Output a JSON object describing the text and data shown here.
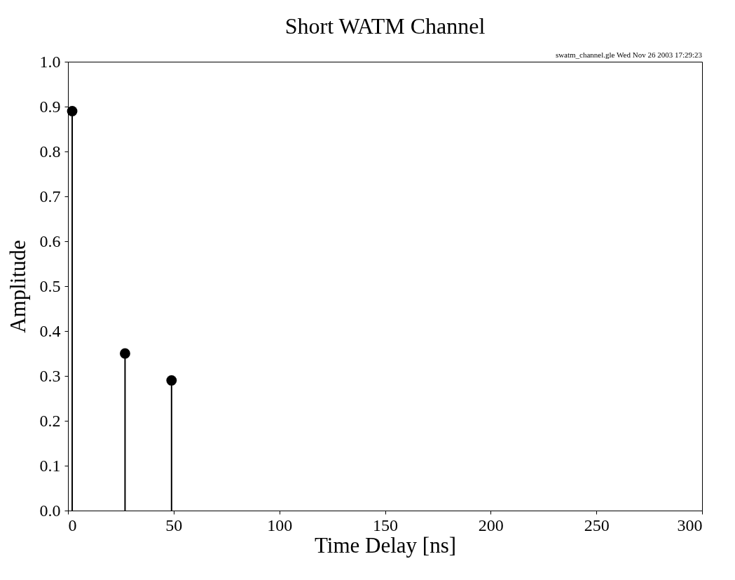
{
  "chart_data": {
    "type": "lollipop",
    "title": "Short WATM Channel",
    "xlabel": "Time Delay [ns]",
    "ylabel": "Amplitude",
    "annotations": [
      "swatm_channel.gle  Wed Nov 26 2003 17:29:23"
    ],
    "x": [
      2,
      27,
      49
    ],
    "values": [
      0.89,
      0.35,
      0.29
    ],
    "color": "#000000",
    "marker": "circle",
    "xlim": [
      0,
      300
    ],
    "xticks": [
      0,
      50,
      100,
      150,
      200,
      250,
      300
    ],
    "ylim": [
      0,
      1
    ],
    "yticks": [
      {
        "value": 0,
        "label": "0.0"
      },
      0.1,
      0.2,
      0.3,
      0.4,
      0.5,
      0.6,
      0.7,
      0.8,
      0.9,
      {
        "value": 1,
        "label": "1.0"
      }
    ],
    "grid": false
  }
}
